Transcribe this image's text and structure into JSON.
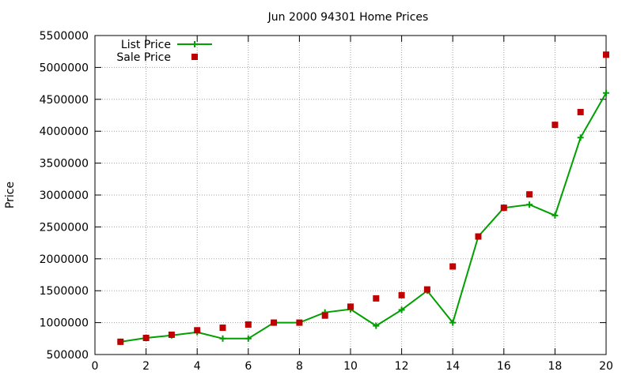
{
  "chart_data": {
    "type": "line",
    "title": "Jun 2000 94301 Home Prices",
    "xlabel": "",
    "ylabel": "Price",
    "xlim": [
      0,
      20
    ],
    "ylim": [
      500000,
      5500000
    ],
    "x_ticks": [
      "0",
      "2",
      "4",
      "6",
      "8",
      "10",
      "12",
      "14",
      "16",
      "18",
      "20"
    ],
    "y_ticks": [
      "500000",
      "1000000",
      "1500000",
      "2000000",
      "2500000",
      "3000000",
      "3500000",
      "4000000",
      "4500000",
      "5000000",
      "5500000"
    ],
    "grid": true,
    "legend_position": "top-left",
    "x": [
      1,
      2,
      3,
      4,
      5,
      6,
      7,
      8,
      9,
      10,
      11,
      12,
      13,
      14,
      15,
      16,
      17,
      18,
      19,
      20
    ],
    "series": [
      {
        "name": "List Price",
        "style": "line-with-plus-markers",
        "color": "#00a000",
        "values": [
          700000,
          760000,
          800000,
          850000,
          750000,
          750000,
          1000000,
          1000000,
          1160000,
          1210000,
          950000,
          1200000,
          1500000,
          1000000,
          2350000,
          2800000,
          2850000,
          2680000,
          3900000,
          4600000
        ]
      },
      {
        "name": "Sale Price",
        "style": "square-points",
        "color": "#c00000",
        "values": [
          700000,
          760000,
          810000,
          880000,
          920000,
          970000,
          1000000,
          1000000,
          1110000,
          1250000,
          1380000,
          1430000,
          1520000,
          1880000,
          2350000,
          2800000,
          3010000,
          4100000,
          4300000,
          5200000
        ]
      }
    ]
  }
}
